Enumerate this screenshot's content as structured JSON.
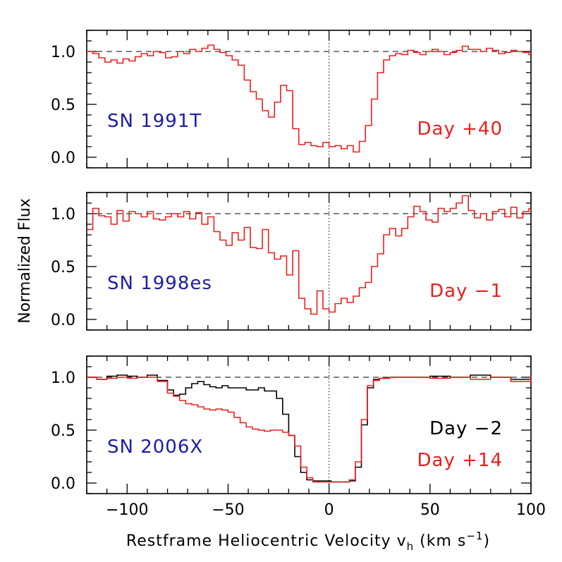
{
  "chart_data": {
    "type": "line",
    "xlabel": "Restframe Heliocentric Velocity v",
    "xlabel_sub": "h",
    "xlabel_units": "(km s",
    "xlabel_sup": "−1",
    "xlabel_close": ")",
    "ylabel": "Normalized Flux",
    "xlim": [
      -120,
      100
    ],
    "xticks": [
      -100,
      -50,
      0,
      50,
      100
    ],
    "xtick_labels": [
      "−100",
      "−50",
      "0",
      "50",
      "100"
    ],
    "ylim": [
      -0.1,
      1.2
    ],
    "yticks": [
      0.0,
      0.5,
      1.0
    ],
    "ytick_labels": [
      "0.0",
      "0.5",
      "1.0"
    ],
    "reference_line_y": 1.0,
    "reference_line_x": 0,
    "colors": {
      "red": "#e8201c",
      "blue": "#1c1ca6",
      "black": "#000000"
    },
    "panels": [
      {
        "object": "SN 1991T",
        "labels": [
          {
            "text": "Day +40",
            "color": "#e8201c"
          }
        ],
        "series": [
          {
            "name": "Day +40",
            "color": "#e8201c",
            "style": "step",
            "x": [
              -120,
              -117,
              -114,
              -111,
              -108,
              -105,
              -102,
              -99,
              -96,
              -93,
              -90,
              -87,
              -84,
              -81,
              -78,
              -75,
              -72,
              -69,
              -66,
              -63,
              -60,
              -57,
              -54,
              -51,
              -48,
              -45,
              -42,
              -39,
              -36,
              -33,
              -30,
              -27,
              -24,
              -21,
              -18,
              -15,
              -12,
              -9,
              -6,
              -3,
              0,
              3,
              6,
              9,
              12,
              15,
              18,
              21,
              24,
              27,
              30,
              33,
              36,
              39,
              42,
              45,
              48,
              51,
              54,
              57,
              60,
              63,
              66,
              69,
              72,
              75,
              78,
              81,
              84,
              87,
              90,
              93,
              96,
              99
            ],
            "y": [
              1.0,
              0.98,
              0.94,
              0.9,
              0.92,
              0.89,
              0.93,
              0.91,
              0.95,
              0.98,
              0.96,
              1.0,
              0.99,
              0.94,
              0.95,
              1.0,
              0.98,
              1.02,
              1.0,
              1.03,
              1.06,
              1.02,
              0.99,
              0.96,
              0.92,
              0.87,
              0.73,
              0.62,
              0.55,
              0.44,
              0.38,
              0.52,
              0.68,
              0.63,
              0.27,
              0.12,
              0.14,
              0.11,
              0.1,
              0.14,
              0.1,
              0.11,
              0.08,
              0.11,
              0.05,
              0.15,
              0.3,
              0.55,
              0.8,
              0.92,
              0.96,
              0.98,
              0.97,
              1.01,
              0.99,
              0.97,
              1.0,
              1.02,
              1.0,
              0.97,
              0.99,
              1.01,
              1.05,
              1.02,
              1.02,
              1.0,
              1.03,
              1.01,
              0.98,
              0.99,
              1.01,
              1.0,
              0.99,
              0.97
            ]
          }
        ]
      },
      {
        "object": "SN 1998es",
        "labels": [
          {
            "text": "Day −1",
            "color": "#e8201c"
          }
        ],
        "series": [
          {
            "name": "Day −1",
            "color": "#e8201c",
            "style": "step",
            "x": [
              -120,
              -117,
              -114,
              -111,
              -108,
              -105,
              -102,
              -99,
              -96,
              -93,
              -90,
              -87,
              -84,
              -81,
              -78,
              -75,
              -72,
              -69,
              -66,
              -63,
              -60,
              -57,
              -54,
              -51,
              -48,
              -45,
              -42,
              -39,
              -36,
              -33,
              -30,
              -27,
              -24,
              -21,
              -18,
              -15,
              -12,
              -9,
              -6,
              -3,
              0,
              3,
              6,
              9,
              12,
              15,
              18,
              21,
              24,
              27,
              30,
              33,
              36,
              39,
              42,
              45,
              48,
              51,
              54,
              57,
              60,
              63,
              66,
              69,
              72,
              75,
              78,
              81,
              84,
              87,
              90,
              93,
              96,
              99
            ],
            "y": [
              0.85,
              1.05,
              0.98,
              0.97,
              0.9,
              1.03,
              0.93,
              1.02,
              1.0,
              0.97,
              1.02,
              0.95,
              0.94,
              0.97,
              1.0,
              0.97,
              1.02,
              0.95,
              1.01,
              0.9,
              0.97,
              0.83,
              0.75,
              0.7,
              0.82,
              0.75,
              0.87,
              0.68,
              0.67,
              0.85,
              0.63,
              0.57,
              0.6,
              0.42,
              0.65,
              0.2,
              0.1,
              0.05,
              0.27,
              0.1,
              0.07,
              0.15,
              0.2,
              0.16,
              0.22,
              0.3,
              0.35,
              0.5,
              0.62,
              0.8,
              0.86,
              0.79,
              0.86,
              0.97,
              1.07,
              1.02,
              0.94,
              0.92,
              1.05,
              1.02,
              1.05,
              1.1,
              1.17,
              1.03,
              0.96,
              1.0,
              0.94,
              1.02,
              1.04,
              0.97,
              1.06,
              0.96,
              1.02,
              1.05
            ]
          }
        ]
      },
      {
        "object": "SN 2006X",
        "labels": [
          {
            "text": "Day −2",
            "color": "#000000"
          },
          {
            "text": "Day +14",
            "color": "#e8201c"
          }
        ],
        "series": [
          {
            "name": "Day −2",
            "color": "#000000",
            "style": "step",
            "x": [
              -120,
              -115,
              -110,
              -105,
              -100,
              -95,
              -90,
              -85,
              -80,
              -77,
              -74,
              -71,
              -68,
              -65,
              -62,
              -59,
              -56,
              -53,
              -50,
              -47,
              -44,
              -41,
              -38,
              -35,
              -32,
              -29,
              -26,
              -23,
              -20,
              -17,
              -14,
              -11,
              -8,
              -5,
              -2,
              1,
              4,
              7,
              10,
              13,
              16,
              19,
              22,
              25,
              30,
              40,
              50,
              60,
              70,
              80,
              90,
              100
            ],
            "y": [
              1.0,
              0.98,
              1.01,
              1.02,
              1.01,
              1.0,
              1.02,
              0.97,
              0.88,
              0.83,
              0.84,
              0.9,
              0.94,
              0.96,
              0.93,
              0.91,
              0.9,
              0.92,
              0.9,
              0.9,
              0.9,
              0.88,
              0.88,
              0.9,
              0.87,
              0.87,
              0.8,
              0.65,
              0.45,
              0.25,
              0.1,
              0.03,
              0.02,
              0.02,
              0.02,
              0.01,
              0.01,
              0.01,
              0.02,
              0.15,
              0.55,
              0.9,
              0.98,
              0.99,
              1.0,
              1.0,
              1.01,
              1.0,
              1.02,
              1.0,
              0.98,
              1.01
            ]
          },
          {
            "name": "Day +14",
            "color": "#e8201c",
            "style": "step",
            "x": [
              -120,
              -115,
              -110,
              -105,
              -100,
              -95,
              -90,
              -85,
              -80,
              -77,
              -74,
              -71,
              -68,
              -65,
              -62,
              -59,
              -56,
              -53,
              -50,
              -47,
              -44,
              -41,
              -38,
              -35,
              -32,
              -29,
              -26,
              -23,
              -20,
              -17,
              -14,
              -11,
              -8,
              -5,
              -2,
              1,
              4,
              7,
              10,
              13,
              16,
              19,
              22,
              25,
              30,
              40,
              50,
              60,
              70,
              80,
              90,
              100
            ],
            "y": [
              1.0,
              0.98,
              0.99,
              1.0,
              0.99,
              1.0,
              1.0,
              0.96,
              0.85,
              0.82,
              0.78,
              0.75,
              0.74,
              0.72,
              0.7,
              0.69,
              0.7,
              0.69,
              0.67,
              0.62,
              0.57,
              0.53,
              0.51,
              0.5,
              0.49,
              0.5,
              0.5,
              0.48,
              0.45,
              0.35,
              0.15,
              0.05,
              0.01,
              0.01,
              0.01,
              0.01,
              0.01,
              0.01,
              0.03,
              0.2,
              0.6,
              0.92,
              0.97,
              0.99,
              1.0,
              1.0,
              0.99,
              1.0,
              0.98,
              1.0,
              0.96,
              1.01
            ]
          }
        ]
      }
    ]
  }
}
